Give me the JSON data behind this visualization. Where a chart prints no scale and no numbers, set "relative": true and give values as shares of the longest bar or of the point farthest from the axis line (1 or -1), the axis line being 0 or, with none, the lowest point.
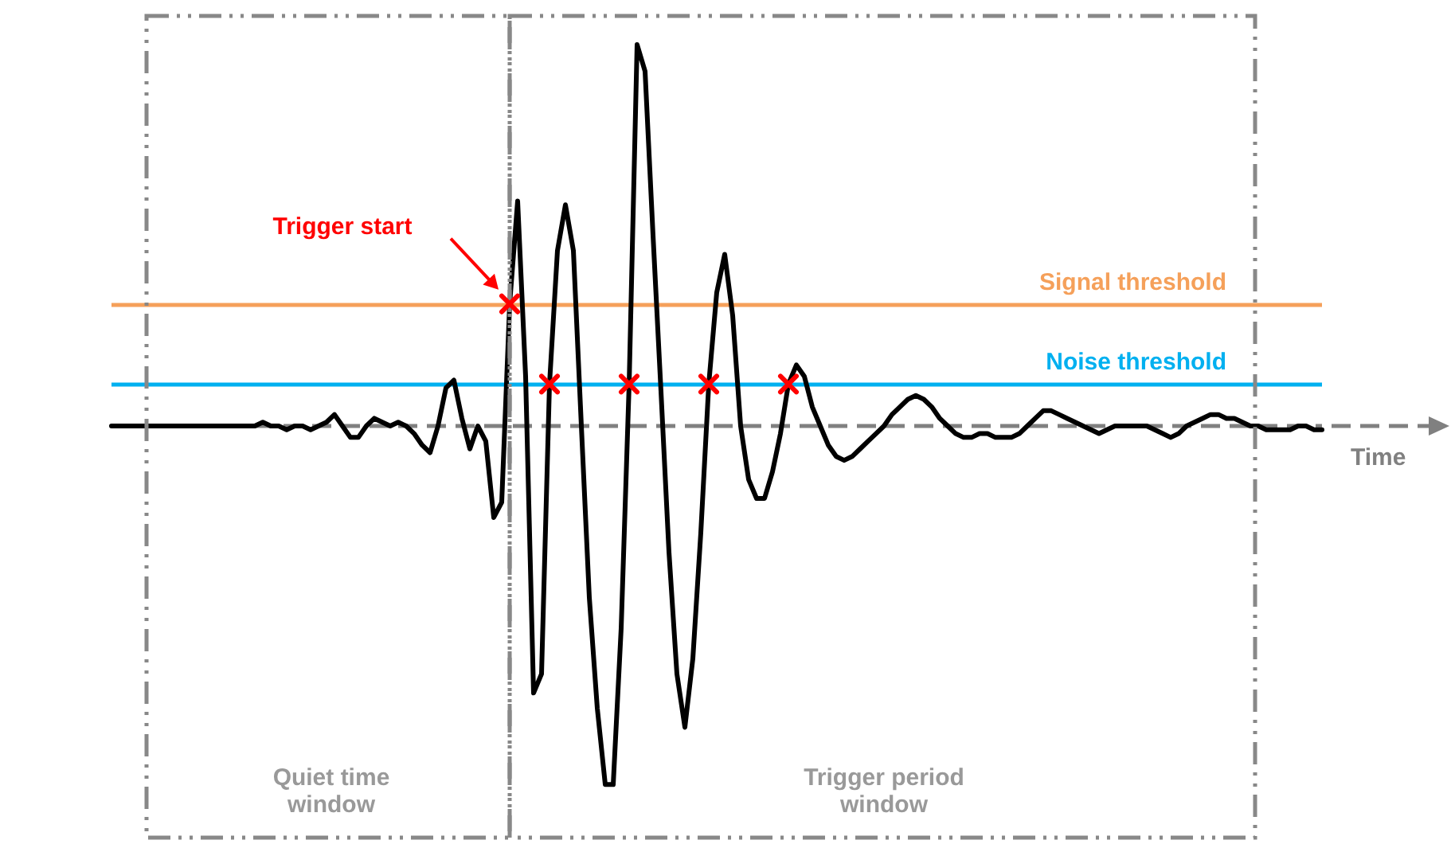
{
  "chart_data": {
    "type": "line",
    "relative": true,
    "xlabel": "Time",
    "categories": [
      null,
      null,
      null,
      null,
      null,
      null,
      null,
      null,
      null,
      null,
      null,
      null,
      null,
      null,
      null,
      null,
      null,
      null,
      null,
      null,
      null,
      null,
      null,
      null,
      null,
      null,
      null,
      null,
      null,
      null,
      null,
      null,
      null,
      null,
      null,
      null,
      null,
      null,
      null,
      null,
      null,
      null,
      null,
      null,
      null,
      null,
      null,
      null,
      null,
      null,
      null,
      null,
      null,
      null,
      null,
      null,
      null,
      null,
      null,
      null,
      null,
      null,
      null,
      null,
      null,
      null,
      null,
      null,
      null,
      null,
      null,
      null,
      null,
      null,
      null,
      null,
      null,
      null,
      null,
      null,
      null,
      null,
      null,
      null,
      null,
      null,
      null,
      null,
      null,
      null,
      null,
      null,
      null,
      null,
      null,
      null,
      null,
      null,
      null,
      null,
      null,
      null,
      null,
      null,
      null,
      null,
      null,
      null,
      null,
      null,
      null,
      null,
      null,
      null,
      null,
      null,
      null,
      null,
      null,
      null,
      null,
      null,
      null,
      null,
      null,
      null,
      null,
      null,
      null,
      null,
      null,
      null,
      null,
      null,
      null,
      null,
      null,
      null,
      null,
      null,
      null,
      null,
      null,
      null,
      null,
      null,
      null,
      null,
      null,
      null,
      null,
      null,
      null
    ],
    "series": [
      {
        "color": "#000000",
        "values": [
          0,
          0,
          0,
          0,
          0,
          0,
          0,
          0,
          0,
          0,
          0,
          0,
          0,
          0,
          0,
          0,
          0,
          0,
          0,
          0.01,
          0,
          0,
          -0.01,
          0,
          0,
          -0.01,
          0,
          0.01,
          0.03,
          0,
          -0.03,
          -0.03,
          0,
          0.02,
          0.01,
          0,
          0.01,
          0,
          -0.02,
          -0.05,
          -0.07,
          0,
          0.1,
          0.12,
          0.02,
          -0.06,
          0,
          -0.04,
          -0.24,
          -0.2,
          0.32,
          0.59,
          0.13,
          -0.7,
          -0.65,
          0.11,
          0.46,
          0.58,
          0.46,
          0,
          -0.45,
          -0.74,
          -0.94,
          -0.94,
          -0.53,
          0.11,
          1,
          0.93,
          0.5,
          0.09,
          -0.33,
          -0.65,
          -0.79,
          -0.61,
          -0.28,
          0.11,
          0.35,
          0.45,
          0.29,
          0,
          -0.14,
          -0.19,
          -0.19,
          -0.12,
          -0.02,
          0.11,
          0.16,
          0.13,
          0.05,
          0,
          -0.05,
          -0.08,
          -0.09,
          -0.08,
          -0.06,
          -0.04,
          -0.02,
          0,
          0.03,
          0.05,
          0.07,
          0.08,
          0.07,
          0.05,
          0.02,
          0,
          -0.02,
          -0.03,
          -0.03,
          -0.02,
          -0.02,
          -0.03,
          -0.03,
          -0.03,
          -0.02,
          0,
          0.02,
          0.04,
          0.04,
          0.03,
          0.02,
          0.01,
          0,
          -0.01,
          -0.02,
          -0.01,
          0,
          0,
          0,
          0,
          0,
          -0.01,
          -0.02,
          -0.03,
          -0.02,
          0,
          0.01,
          0.02,
          0.03,
          0.03,
          0.02,
          0.02,
          0.01,
          0,
          0,
          -0.01,
          -0.01,
          -0.01,
          -0.01,
          0,
          0,
          -0.01,
          -0.01
        ]
      }
    ],
    "ref_lines": [
      {
        "axis": "y",
        "value": 0,
        "label": null,
        "color": "#808080",
        "line_style": "dashed"
      },
      {
        "axis": "y",
        "value": 0.32,
        "label": "Signal threshold",
        "color": "#f5a05a",
        "line_style": "solid"
      },
      {
        "axis": "y",
        "value": 0.11,
        "label": "Noise threshold",
        "color": "#00b0f0",
        "line_style": "solid"
      }
    ],
    "annotations": [
      "Trigger start",
      "Quiet time window",
      "Trigger period window"
    ],
    "marker": "none",
    "line_style": "solid",
    "grid": false
  }
}
